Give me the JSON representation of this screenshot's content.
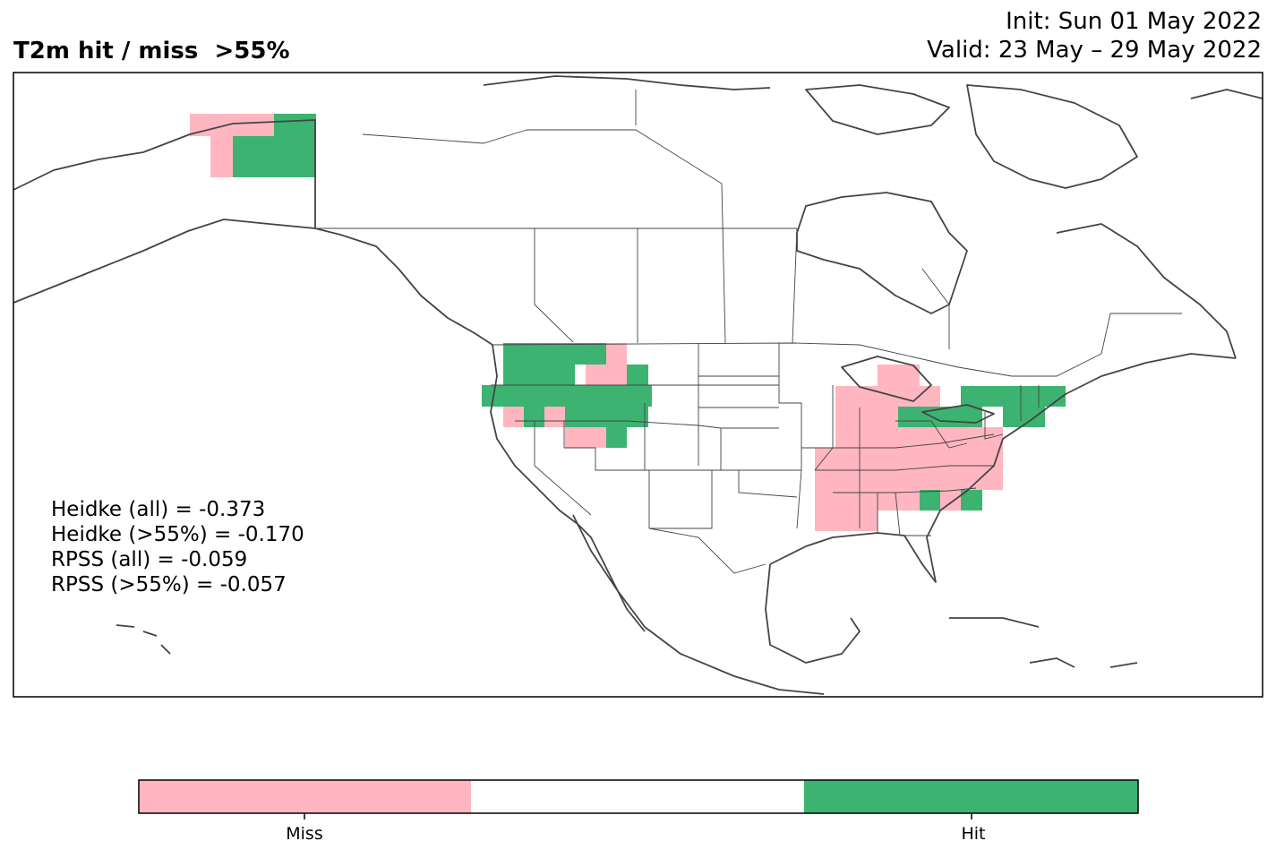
{
  "title": {
    "left": "T2m hit / miss  >55%",
    "init": "Init: Sun 01 May 2022",
    "valid": "Valid: 23 May – 29 May 2022"
  },
  "stats": [
    "Heidke (all) = -0.373",
    "Heidke (>55%) = -0.170",
    "RPSS (all) = -0.059",
    "RPSS (>55%) = -0.057"
  ],
  "colorbar": {
    "categories": [
      "Miss",
      "",
      "Hit"
    ],
    "colors": [
      "#ffb6c1",
      "#ffffff",
      "#3cb371"
    ],
    "tick_labels": [
      "Miss",
      "Hit"
    ]
  },
  "colors": {
    "miss": "#ffb6c1",
    "hit": "#3cb371",
    "coastline": "#444444",
    "frame": "#000000"
  }
}
